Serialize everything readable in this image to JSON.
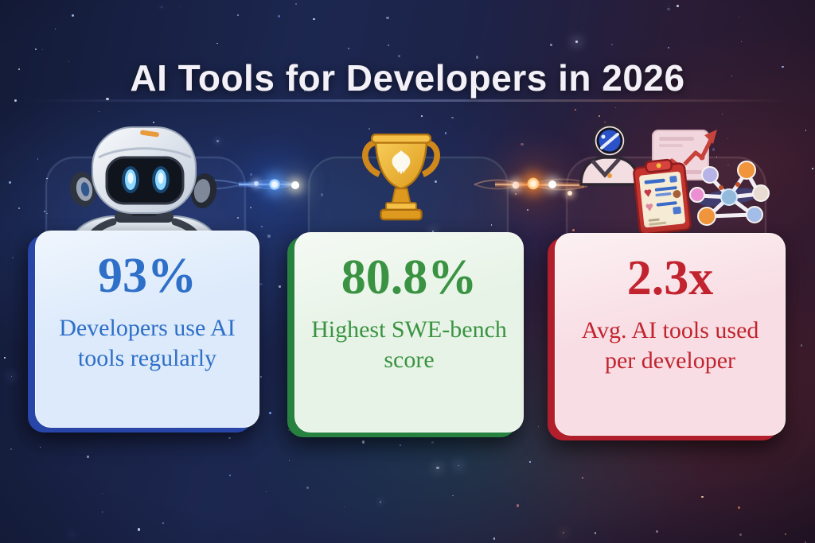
{
  "title": "AI Tools for Developers in 2026",
  "chart_data": {
    "type": "table",
    "title": "AI Tools for Developers in 2026",
    "categories": [
      "Developers use AI tools regularly",
      "Highest SWE-bench score",
      "Avg. AI tools used per developer"
    ],
    "values": [
      "93%",
      "80.8%",
      "2.3x"
    ]
  },
  "cards": [
    {
      "value": "93%",
      "label": "Developers use AI tools regularly",
      "accent": "#2e6fc7",
      "bg": "#dceafb",
      "edge": "#2846a8",
      "icon": "robot-mascot"
    },
    {
      "value": "80.8%",
      "label": "Highest SWE-bench score",
      "accent": "#3a9342",
      "bg": "#e7f3e6",
      "edge": "#27813f",
      "icon": "trophy"
    },
    {
      "value": "2.3x",
      "label": "Avg. AI tools used per developer",
      "accent": "#c2242f",
      "bg": "#f8dee4",
      "edge": "#b21f2c",
      "icon": "ai-tool-icons"
    }
  ],
  "icons": [
    {
      "name": "robot-mascot-icon",
      "desc": "white robot with glowing blue eyes"
    },
    {
      "name": "trophy-icon",
      "desc": "gold trophy with white emblem"
    },
    {
      "name": "analyst-avatar-icon",
      "desc": "astronaut avatar with blue visor"
    },
    {
      "name": "checklist-clipboard-icon",
      "desc": "red clipboard with checklist"
    },
    {
      "name": "trend-chart-icon",
      "desc": "document with rising red arrow chart"
    },
    {
      "name": "network-graph-icon",
      "desc": "connected colorful network nodes"
    }
  ],
  "style_colors": {
    "title_text": "#f3f1f7",
    "background_left": "#1b2547",
    "background_right": "#2a1b33",
    "trophy_gold": "#eeb13c",
    "glow_node_blue": "#3f8dff",
    "glow_node_orange": "#ff8a34"
  }
}
